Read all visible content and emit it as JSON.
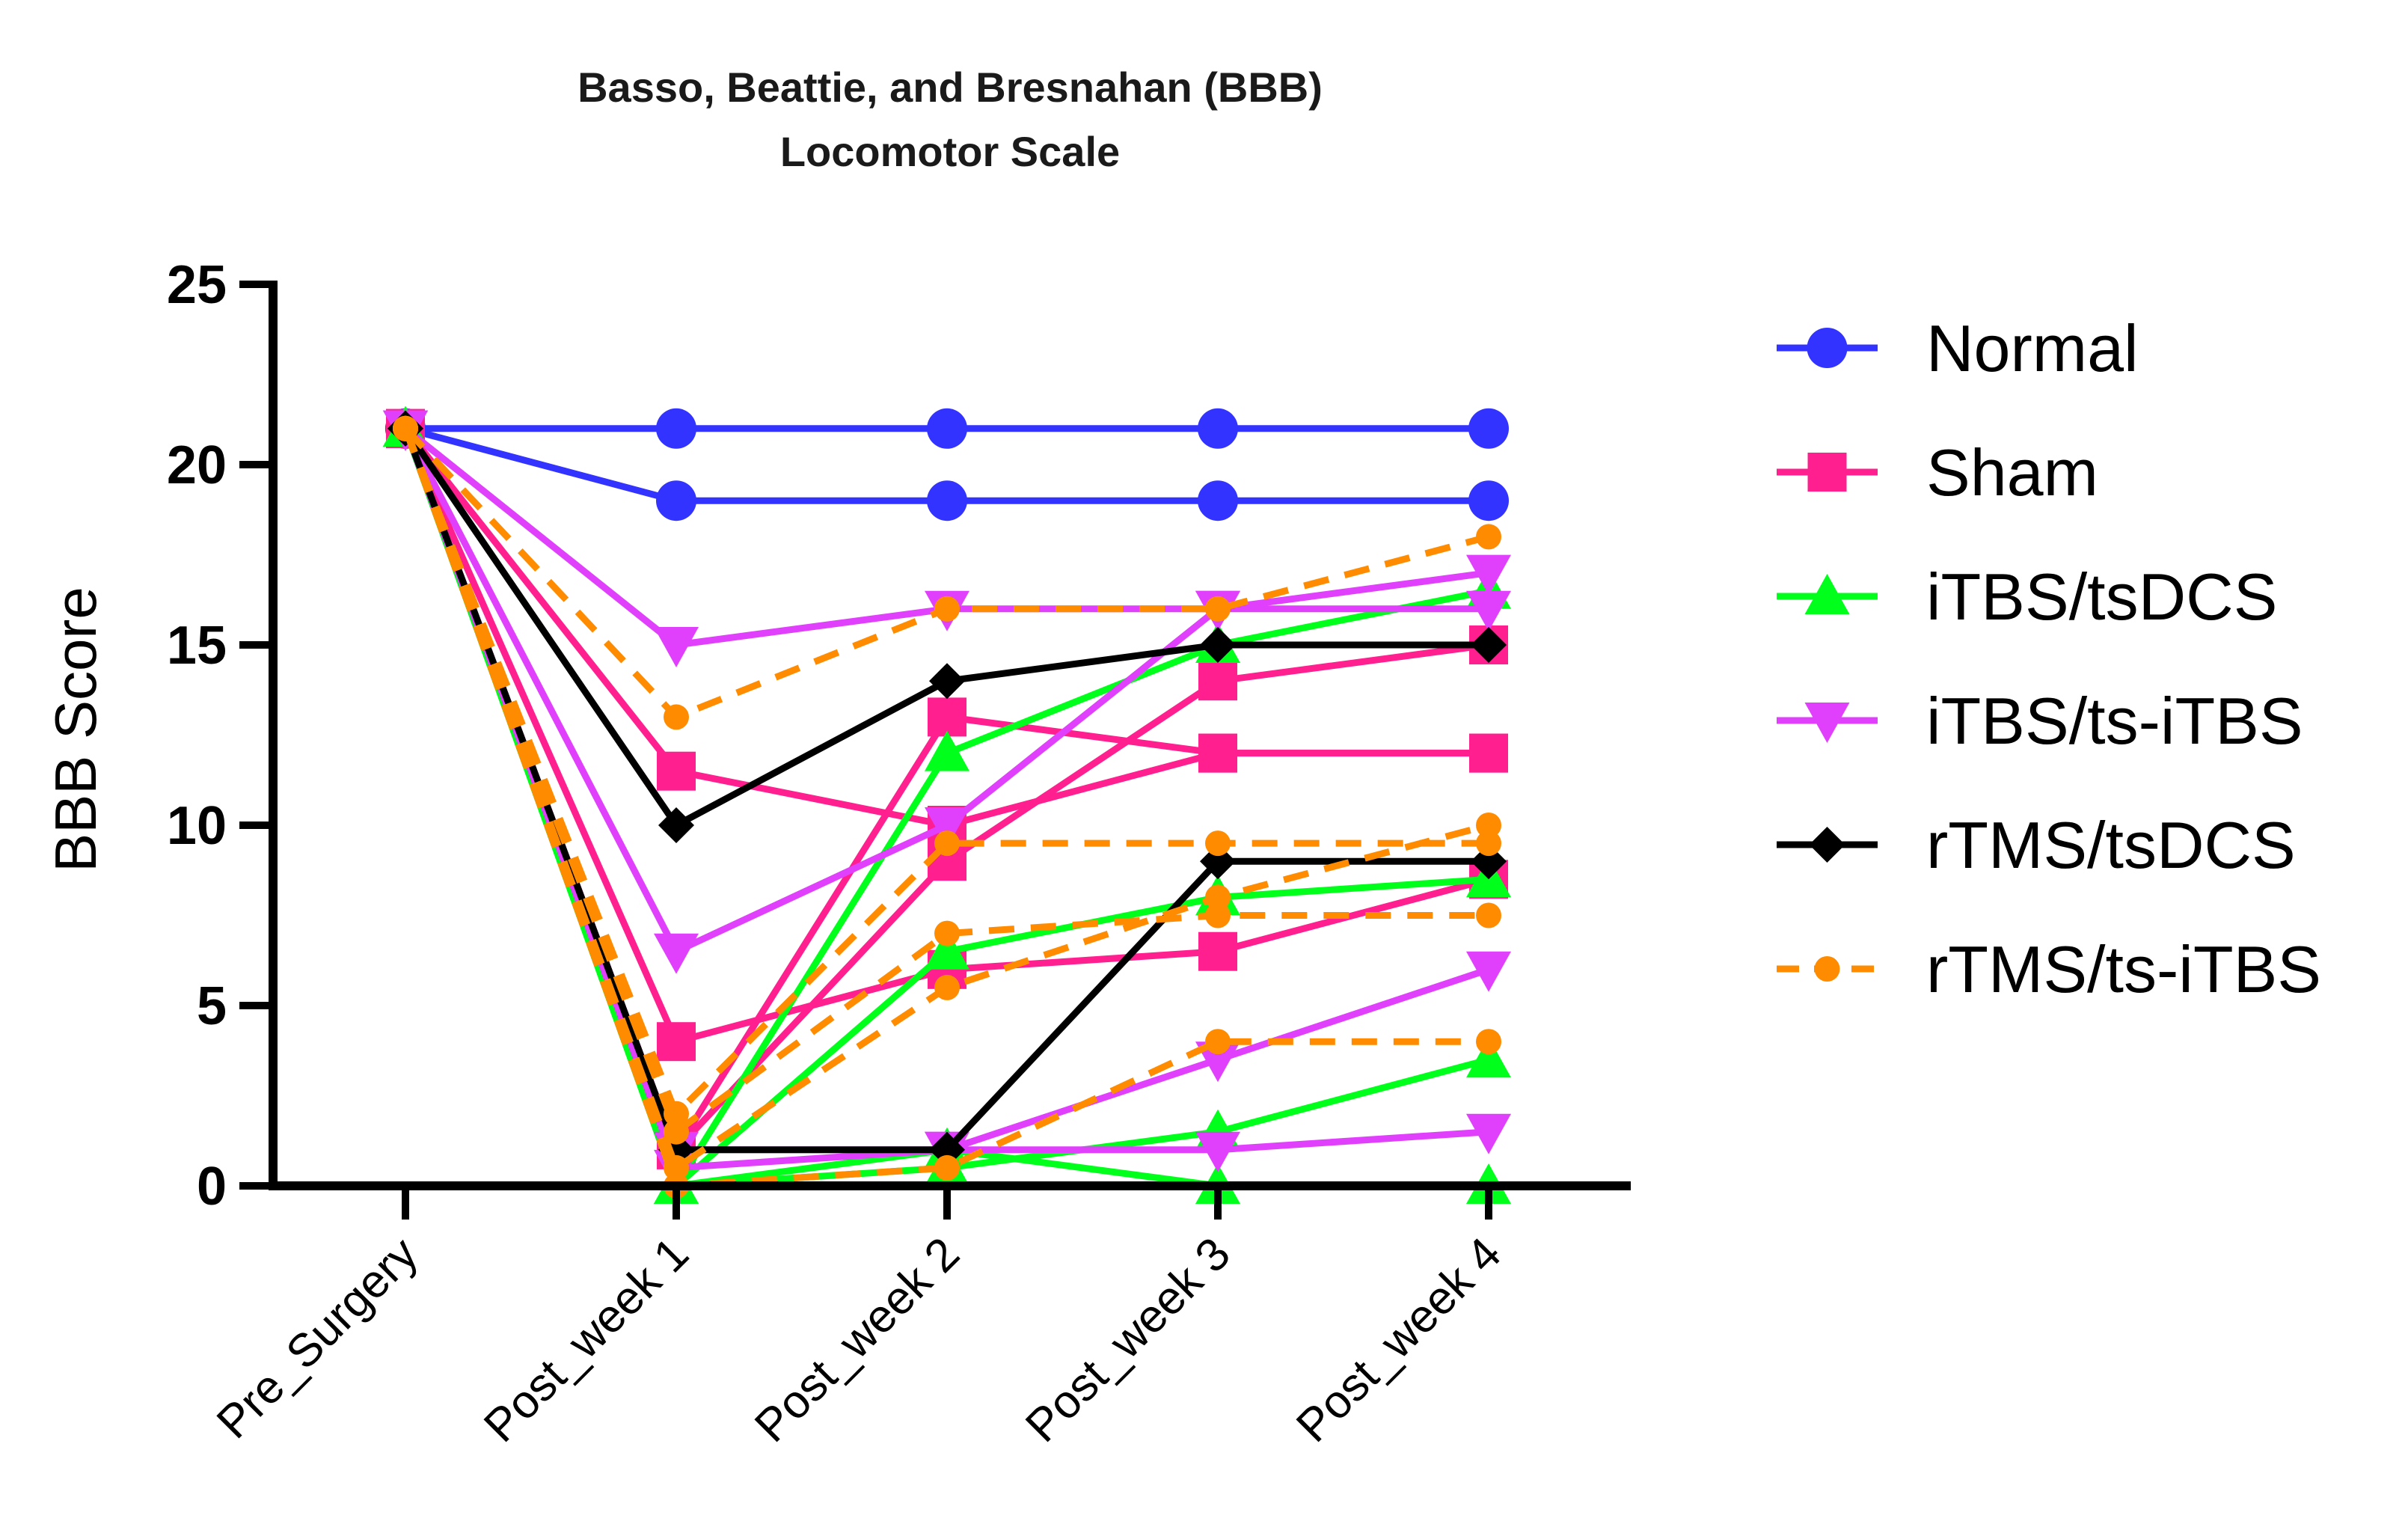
{
  "chart_data": {
    "type": "line",
    "title": [
      "Basso, Beattie, and Bresnahan (BBB)",
      "Locomotor Scale"
    ],
    "ylabel": "BBB Score",
    "xlabel": "",
    "ylim": [
      0,
      25
    ],
    "yticks": [
      "0",
      "5",
      "10",
      "15",
      "20",
      "25"
    ],
    "categories": [
      "Pre_Surgery",
      "Post_week 1",
      "Post_week 2",
      "Post_week 3",
      "Post_week 4"
    ],
    "legend_position": "right",
    "series": [
      {
        "name": "Normal",
        "color": "#3333ff",
        "marker": "circle",
        "dash": false,
        "lines": [
          [
            21,
            21,
            21,
            21,
            21
          ],
          [
            21,
            19,
            19,
            19,
            19
          ]
        ]
      },
      {
        "name": "Sham",
        "color": "#ff1f8f",
        "marker": "square",
        "dash": false,
        "lines": [
          [
            21,
            11.5,
            10,
            12,
            12
          ],
          [
            21,
            4,
            6,
            6.5,
            8.5
          ],
          [
            21,
            1,
            9,
            14,
            15
          ],
          [
            21,
            1,
            13,
            12,
            12
          ]
        ]
      },
      {
        "name": "iTBS/tsDCS",
        "color": "#00ff1a",
        "marker": "triangle-up",
        "dash": false,
        "lines": [
          [
            21,
            0,
            12,
            15,
            16.5
          ],
          [
            21,
            0,
            6.5,
            8,
            8.5
          ],
          [
            21,
            0,
            0.5,
            1.5,
            3.5
          ],
          [
            21,
            0,
            1,
            0,
            0
          ]
        ]
      },
      {
        "name": "iTBS/ts-iTBS",
        "color": "#e040fb",
        "marker": "triangle-down",
        "dash": false,
        "lines": [
          [
            21,
            15,
            16,
            16,
            17
          ],
          [
            21,
            6.5,
            10,
            16,
            16
          ],
          [
            21,
            1,
            1,
            3.5,
            6
          ],
          [
            21,
            0.5,
            1,
            1,
            1.5
          ]
        ]
      },
      {
        "name": "rTMS/tsDCS",
        "color": "#000000",
        "marker": "diamond",
        "dash": false,
        "lines": [
          [
            21,
            10,
            14,
            15,
            15
          ],
          [
            21,
            1,
            1,
            9,
            9
          ]
        ]
      },
      {
        "name": "rTMS/ts-iTBS",
        "color": "#ff8c00",
        "marker": "small-circle",
        "dash": true,
        "lines": [
          [
            21,
            13,
            16,
            16,
            18
          ],
          [
            21,
            2,
            9.5,
            9.5,
            9.5
          ],
          [
            21,
            1.5,
            7,
            7.5,
            7.5
          ],
          [
            21,
            0.5,
            5.5,
            8,
            10
          ],
          [
            21,
            0,
            0.5,
            4,
            4
          ]
        ]
      }
    ]
  }
}
